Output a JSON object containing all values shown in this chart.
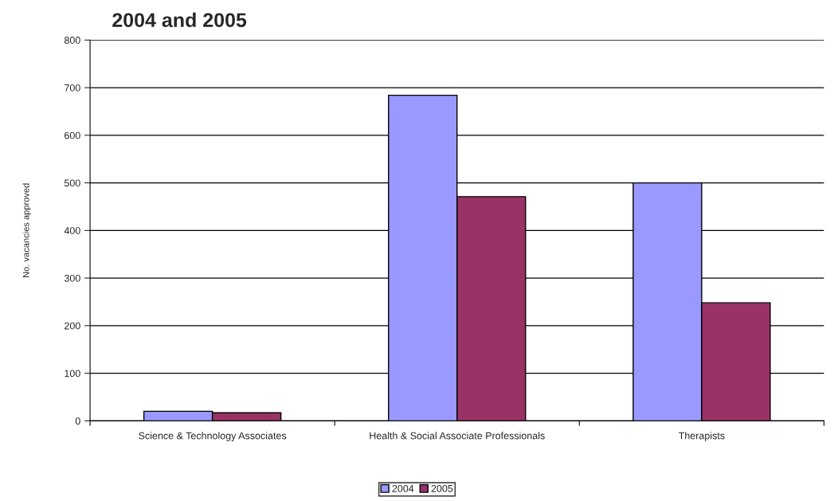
{
  "chart_data": {
    "type": "bar",
    "title": "2004 and 2005",
    "ylabel": "No. vacancies approved",
    "categories": [
      "Science & Technology Associates",
      "Health & Social Associate Professionals",
      "Therapists"
    ],
    "series": [
      {
        "name": "2004",
        "color": "#9999ff",
        "values": [
          20,
          684,
          500
        ]
      },
      {
        "name": "2005",
        "color": "#993366",
        "values": [
          17,
          471,
          248
        ]
      }
    ],
    "ylim": [
      0,
      800
    ],
    "yticks": [
      0,
      100,
      200,
      300,
      400,
      500,
      600,
      700,
      800
    ],
    "grid": "y",
    "legend": "bottom"
  }
}
